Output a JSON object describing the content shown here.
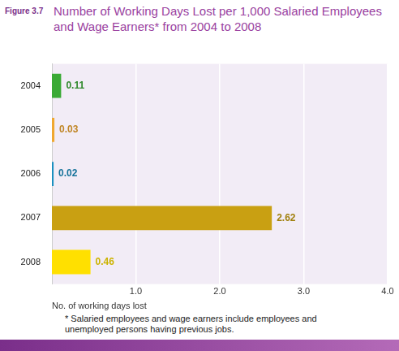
{
  "chart_data": {
    "type": "bar",
    "orientation": "horizontal",
    "figure_label": "Figure 3.7",
    "title": "Number of Working Days Lost per 1,000 Salaried Employees and Wage Earners* from 2004 to 2008",
    "x_label": "No. of working days lost",
    "categories": [
      "2004",
      "2005",
      "2006",
      "2007",
      "2008"
    ],
    "values": [
      0.11,
      0.03,
      0.02,
      2.62,
      0.46
    ],
    "colors": [
      "#3aaa35",
      "#f0a830",
      "#1a8fc0",
      "#c9a012",
      "#ffe000"
    ],
    "xlim": [
      0,
      4
    ],
    "xticks": [
      {
        "value": 1,
        "label": "1.0"
      },
      {
        "value": 2,
        "label": "2.0"
      },
      {
        "value": 3,
        "label": "3.0"
      },
      {
        "value": 4,
        "label": "4.0"
      }
    ],
    "grid": true,
    "data_labels": true,
    "footnote": "* Salaried employees and wage earners include employees and unemployed persons having previous jobs."
  }
}
